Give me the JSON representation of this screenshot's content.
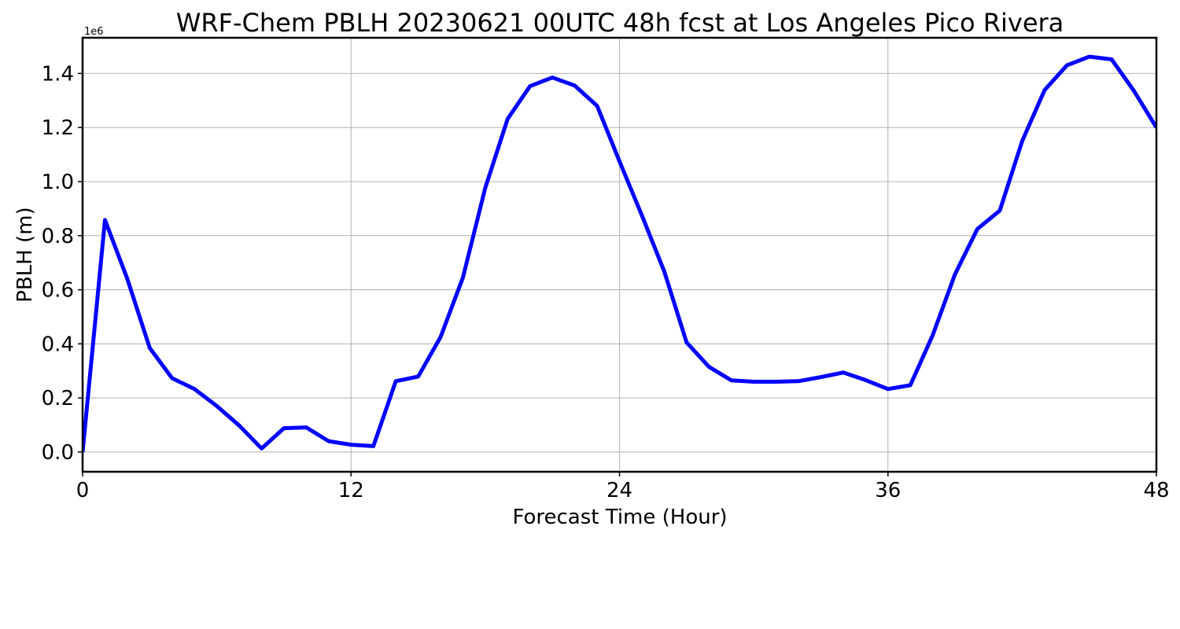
{
  "chart_data": {
    "type": "line",
    "title": "WRF-Chem PBLH  20230621 00UTC 48h fcst at Los Angeles Pico Rivera",
    "xlabel": "Forecast Time (Hour)",
    "ylabel": "PBLH  (m)",
    "y_offset_label": "1e6",
    "xlim": [
      0,
      48
    ],
    "ylim": [
      -0.073,
      1.532
    ],
    "y_scale": 1000000,
    "xticks": [
      0,
      12,
      24,
      36,
      48
    ],
    "xtick_labels": [
      "0",
      "12",
      "24",
      "36",
      "48"
    ],
    "yticks": [
      0.0,
      0.2,
      0.4,
      0.6,
      0.8,
      1.0,
      1.2,
      1.4
    ],
    "ytick_labels": [
      "0.0",
      "0.2",
      "0.4",
      "0.6",
      "0.8",
      "1.0",
      "1.2",
      "1.4"
    ],
    "grid": true,
    "series": [
      {
        "color": "#0000ff",
        "x": [
          0,
          1,
          2,
          3,
          4,
          5,
          6,
          7,
          8,
          9,
          10,
          11,
          12,
          13,
          14,
          15,
          16,
          17,
          18,
          19,
          20,
          21,
          22,
          23,
          24,
          25,
          26,
          27,
          28,
          29,
          30,
          31,
          32,
          33,
          34,
          35,
          36,
          37,
          38,
          39,
          40,
          41,
          42,
          43,
          44,
          45,
          46,
          47,
          48
        ],
        "y": [
          0.0,
          0.858,
          0.64,
          0.385,
          0.273,
          0.233,
          0.17,
          0.098,
          0.013,
          0.088,
          0.091,
          0.04,
          0.027,
          0.022,
          0.262,
          0.279,
          0.425,
          0.645,
          0.977,
          1.232,
          1.353,
          1.385,
          1.355,
          1.28,
          1.075,
          0.875,
          0.668,
          0.405,
          0.315,
          0.265,
          0.26,
          0.26,
          0.262,
          0.277,
          0.294,
          0.266,
          0.233,
          0.247,
          0.432,
          0.658,
          0.825,
          0.893,
          1.15,
          1.338,
          1.43,
          1.462,
          1.452,
          1.335,
          1.2
        ]
      }
    ]
  }
}
